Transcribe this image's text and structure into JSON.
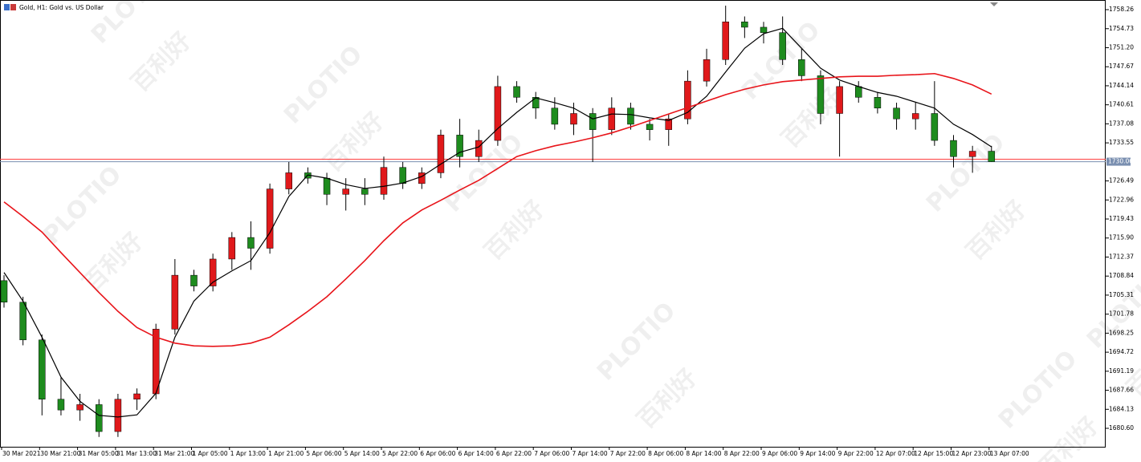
{
  "chart_data": {
    "type": "candlestick",
    "title": "Gold, H1:  Gold vs. US Dollar",
    "watermark": "PLOTIO",
    "watermark_cn": "百利好",
    "categories": [
      "30 Mar 2021",
      null,
      "30 Mar 21:00",
      null,
      "31 Mar 05:00",
      null,
      "31 Mar 13:00",
      null,
      "31 Mar 21:00",
      null,
      "1 Apr 05:00",
      null,
      "1 Apr 13:00",
      null,
      "1 Apr 21:00",
      null,
      "5 Apr 06:00",
      null,
      "5 Apr 14:00",
      null,
      "5 Apr 22:00",
      null,
      "6 Apr 06:00",
      null,
      "6 Apr 14:00",
      null,
      "6 Apr 22:00",
      null,
      "7 Apr 06:00",
      null,
      "7 Apr 14:00",
      null,
      "7 Apr 22:00",
      null,
      "8 Apr 06:00",
      null,
      "8 Apr 14:00",
      null,
      "8 Apr 22:00",
      null,
      "9 Apr 06:00",
      null,
      "9 Apr 14:00",
      null,
      "9 Apr 22:00",
      null,
      "12 Apr 07:00",
      null,
      "12 Apr 15:00",
      null,
      "12 Apr 23:00",
      null,
      "13 Apr 07:00"
    ],
    "open": [
      1708,
      1704,
      1697,
      1686,
      1684,
      1685,
      1680,
      1686,
      1687,
      1699,
      1709,
      1707,
      1712,
      1716,
      1714,
      1725,
      1728,
      1727,
      1724,
      1725,
      1724,
      1729,
      1726,
      1728,
      1735,
      1731,
      1734,
      1744,
      1742,
      1740,
      1737,
      1739,
      1736,
      1740,
      1737,
      1736,
      1738,
      1745,
      1749,
      1756,
      1755,
      1754,
      1749,
      1746,
      1739,
      1744,
      1742,
      1740,
      1738,
      1739,
      1734,
      1731,
      1732
    ],
    "high": [
      1709,
      1705,
      1698,
      1690,
      1687,
      1686,
      1687,
      1688,
      1700,
      1712,
      1710,
      1713,
      1717,
      1719,
      1726,
      1730,
      1729,
      1728,
      1727,
      1727,
      1731,
      1730,
      1729,
      1736,
      1738,
      1736,
      1746,
      1745,
      1743,
      1742,
      1741,
      1740,
      1742,
      1741,
      1738,
      1739,
      1747,
      1751,
      1759,
      1757,
      1756,
      1757,
      1751,
      1747,
      1745,
      1745,
      1743,
      1741,
      1741,
      1745,
      1735,
      1733,
      1733
    ],
    "low": [
      1703,
      1696,
      1683,
      1683,
      1682,
      1679,
      1679,
      1684,
      1686,
      1698,
      1706,
      1706,
      1710,
      1710,
      1713,
      1724,
      1726,
      1722,
      1721,
      1722,
      1723,
      1725,
      1725,
      1727,
      1729,
      1730,
      1733,
      1741,
      1738,
      1736,
      1735,
      1730,
      1735,
      1736,
      1734,
      1733,
      1737,
      1744,
      1748,
      1753,
      1752,
      1748,
      1745,
      1737,
      1731,
      1741,
      1739,
      1736,
      1736,
      1733,
      1729,
      1728,
      1730
    ],
    "close": [
      1704,
      1697,
      1686,
      1684,
      1685,
      1680,
      1686,
      1687,
      1699,
      1709,
      1707,
      1712,
      1716,
      1714,
      1725,
      1728,
      1727,
      1724,
      1725,
      1724,
      1729,
      1726,
      1728,
      1735,
      1731,
      1734,
      1744,
      1742,
      1740,
      1737,
      1739,
      1736,
      1740,
      1737,
      1736,
      1738,
      1745,
      1749,
      1756,
      1755,
      1754,
      1749,
      1746,
      1739,
      1744,
      1742,
      1740,
      1738,
      1739,
      1734,
      1731,
      1732,
      1730.06
    ],
    "up_color": "#e0191b",
    "down_color": "#1e8c1e",
    "series": [
      {
        "color": "#000000",
        "values": [
          1709.5,
          1704.2,
          1697.5,
          1690.1,
          1685.6,
          1683.0,
          1682.7,
          1683.1,
          1687.1,
          1697.5,
          1704.2,
          1707.7,
          1709.8,
          1711.7,
          1716.9,
          1723.6,
          1727.6,
          1727.0,
          1725.8,
          1725.1,
          1725.5,
          1726.1,
          1727.3,
          1729.6,
          1731.8,
          1732.8,
          1736.2,
          1739.2,
          1741.9,
          1741.0,
          1740.0,
          1738.0,
          1738.9,
          1738.8,
          1738.2,
          1737.7,
          1739.2,
          1742.2,
          1746.7,
          1751.1,
          1753.8,
          1754.8,
          1751.1,
          1747.4,
          1745.2,
          1744.0,
          1742.9,
          1742.2,
          1741.1,
          1740.0,
          1737.0,
          1735.1,
          1732.8
        ]
      },
      {
        "color": "#e8141a",
        "values": [
          1722.6,
          1719.9,
          1717.0,
          1713.2,
          1709.5,
          1705.8,
          1702.3,
          1699.3,
          1697.5,
          1696.4,
          1695.9,
          1695.8,
          1695.9,
          1696.4,
          1697.5,
          1699.8,
          1702.3,
          1705.0,
          1708.3,
          1711.7,
          1715.4,
          1718.7,
          1721.1,
          1722.9,
          1724.8,
          1726.6,
          1728.8,
          1731.0,
          1732.1,
          1733.0,
          1733.7,
          1734.5,
          1735.4,
          1736.5,
          1737.7,
          1738.9,
          1740.1,
          1741.3,
          1742.5,
          1743.5,
          1744.3,
          1744.9,
          1745.2,
          1745.5,
          1745.8,
          1745.9,
          1745.9,
          1746.1,
          1746.2,
          1746.4,
          1745.5,
          1744.3,
          1742.6
        ]
      }
    ],
    "last_price": 1730.06,
    "ask_price": 1730.51,
    "ylim": [
      1677.18,
      1760.05
    ],
    "yticks": [
      1758.26,
      1754.73,
      {
        "value": 1751.2,
        "label": "1751.20"
      },
      1747.67,
      1744.14,
      1740.61,
      1737.08,
      1733.55,
      1726.49,
      1722.96,
      1719.43,
      {
        "value": 1715.9,
        "label": "1715.90"
      },
      1712.37,
      1708.84,
      1705.31,
      1701.78,
      1698.25,
      1694.72,
      1691.19,
      1687.66,
      1684.13,
      {
        "value": 1680.6,
        "label": "1680.60"
      }
    ]
  }
}
